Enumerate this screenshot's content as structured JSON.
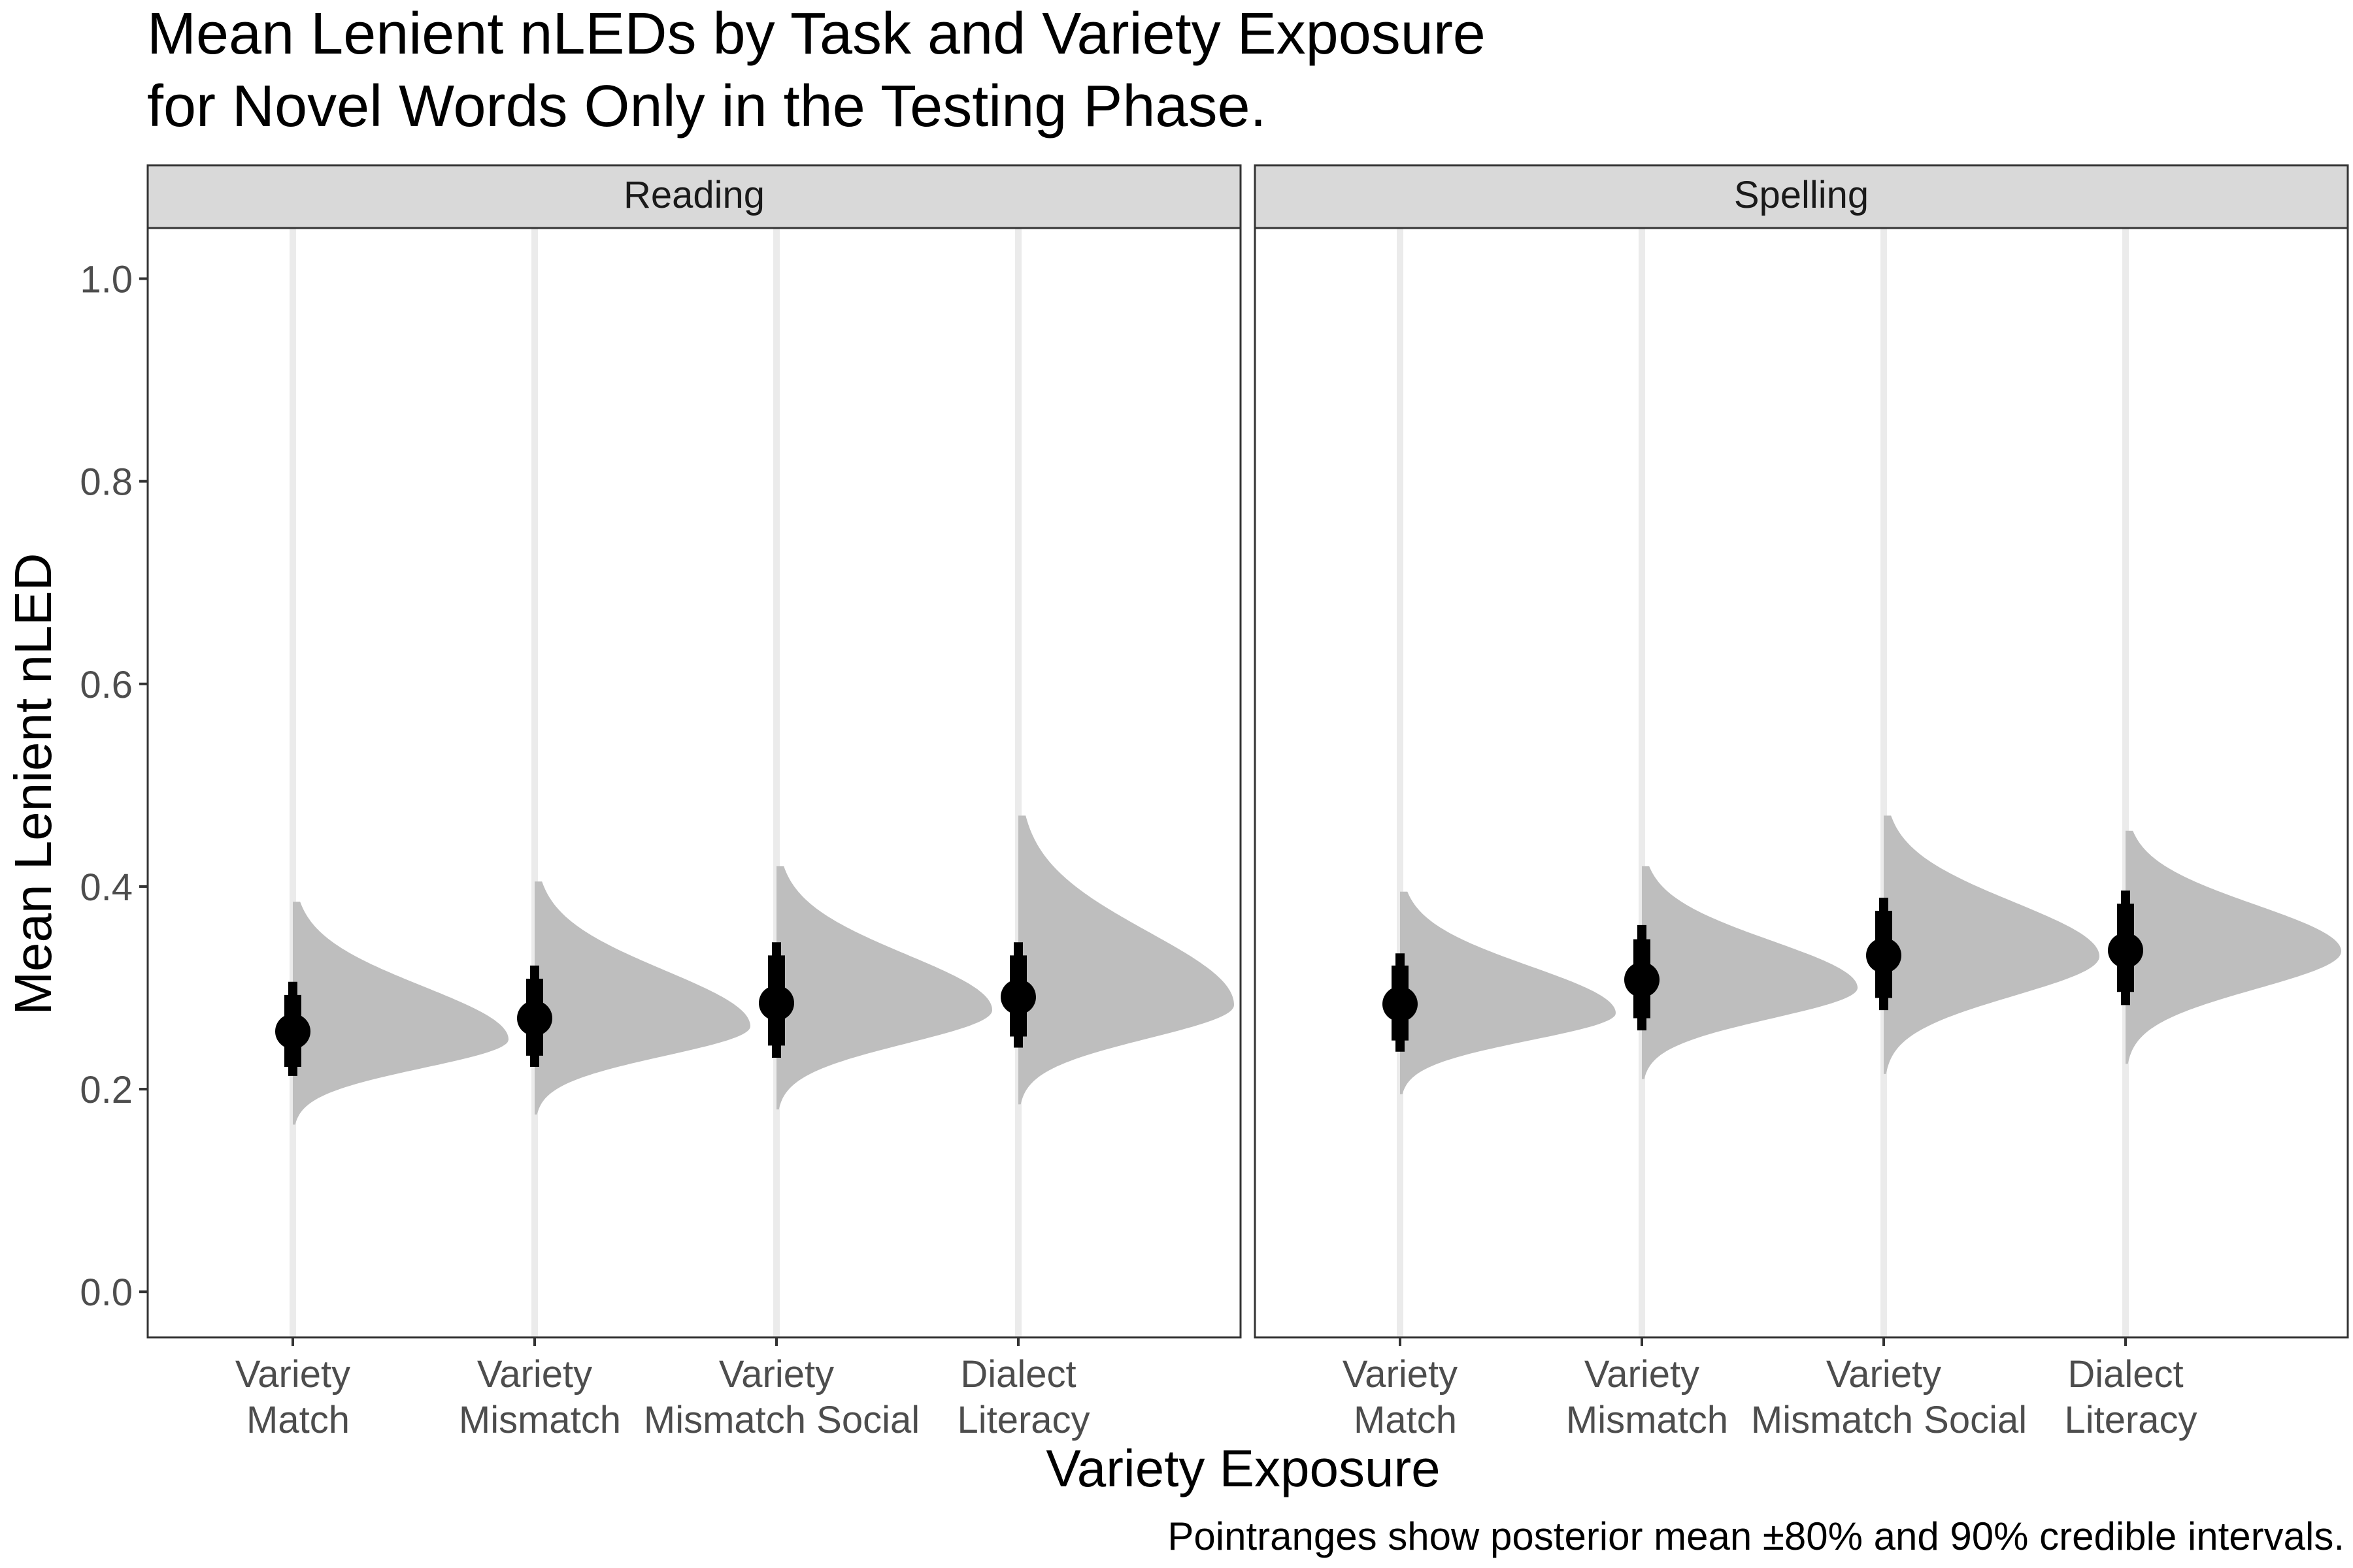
{
  "chart_data": {
    "type": "halfeye",
    "title_lines": [
      "Mean Lenient nLEDs by Task and Variety Exposure",
      "for Novel Words Only in the Testing Phase."
    ],
    "xlabel": "Variety Exposure",
    "ylabel": "Mean Lenient nLED",
    "caption": "Pointranges show posterior mean ±80% and 90% credible intervals.",
    "ylim": [
      -0.045,
      1.05
    ],
    "yticks": [
      {
        "value": 0.0,
        "label": "0.0"
      },
      {
        "value": 0.2,
        "label": "0.2"
      },
      {
        "value": 0.4,
        "label": "0.4"
      },
      {
        "value": 0.6,
        "label": "0.6"
      },
      {
        "value": 0.8,
        "label": "0.8"
      },
      {
        "value": 1.0,
        "label": "1.0"
      }
    ],
    "categories": [
      [
        "Variety",
        "Match"
      ],
      [
        "Variety",
        "Mismatch"
      ],
      [
        "Variety",
        "Mismatch Social"
      ],
      [
        "Dialect",
        "Literacy"
      ]
    ],
    "grid": false,
    "panels": [
      {
        "name": "Reading",
        "points": [
          {
            "mean": 0.257,
            "ci80": [
              0.222,
              0.293
            ],
            "ci90": [
              0.213,
              0.306
            ],
            "dens_mode": 0.249,
            "dens_range": [
              0.165,
              0.385
            ],
            "sd": 0.029
          },
          {
            "mean": 0.27,
            "ci80": [
              0.233,
              0.309
            ],
            "ci90": [
              0.222,
              0.322
            ],
            "dens_mode": 0.262,
            "dens_range": [
              0.175,
              0.405
            ],
            "sd": 0.032
          },
          {
            "mean": 0.285,
            "ci80": [
              0.243,
              0.332
            ],
            "ci90": [
              0.231,
              0.345
            ],
            "dens_mode": 0.278,
            "dens_range": [
              0.18,
              0.42
            ],
            "sd": 0.035
          },
          {
            "mean": 0.291,
            "ci80": [
              0.252,
              0.332
            ],
            "ci90": [
              0.241,
              0.345
            ],
            "dens_mode": 0.283,
            "dens_range": [
              0.185,
              0.47
            ],
            "sd": 0.033
          }
        ]
      },
      {
        "name": "Spelling",
        "points": [
          {
            "mean": 0.284,
            "ci80": [
              0.248,
              0.322
            ],
            "ci90": [
              0.237,
              0.334
            ],
            "dens_mode": 0.275,
            "dens_range": [
              0.195,
              0.395
            ],
            "sd": 0.029
          },
          {
            "mean": 0.308,
            "ci80": [
              0.27,
              0.348
            ],
            "ci90": [
              0.258,
              0.362
            ],
            "dens_mode": 0.3,
            "dens_range": [
              0.21,
              0.42
            ],
            "sd": 0.032
          },
          {
            "mean": 0.332,
            "ci80": [
              0.29,
              0.376
            ],
            "ci90": [
              0.278,
              0.389
            ],
            "dens_mode": 0.331,
            "dens_range": [
              0.215,
              0.47
            ],
            "sd": 0.035
          },
          {
            "mean": 0.337,
            "ci80": [
              0.296,
              0.383
            ],
            "ci90": [
              0.283,
              0.396
            ],
            "dens_mode": 0.336,
            "dens_range": [
              0.225,
              0.455
            ],
            "sd": 0.034
          }
        ]
      }
    ],
    "colors": {
      "density": "#bebebe",
      "vline": "#ebebeb",
      "point": "#000000",
      "strip": "#d9d9d9",
      "frame": "#333333",
      "tick_text": "#4d4d4d",
      "text": "#000000"
    }
  }
}
